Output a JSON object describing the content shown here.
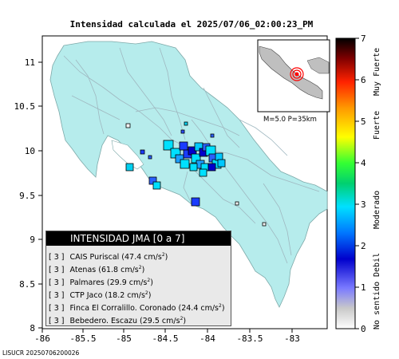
{
  "title": "Intensidad calculada el 2025/07/06_02:00:23_PM",
  "footer": "LISUCR 20250706200026",
  "inset": {
    "label": "M=5.0 P=35km"
  },
  "axes": {
    "x_ticks": [
      "-86",
      "-85.5",
      "-85",
      "-84.5",
      "-84",
      "-83.5",
      "-83"
    ],
    "y_ticks": [
      "11",
      "10.5",
      "10",
      "9.5",
      "9",
      "8.5",
      "8"
    ]
  },
  "colorbar": {
    "ticks": [
      "0",
      "1",
      "2",
      "3",
      "4",
      "5",
      "6",
      "7"
    ],
    "categories": [
      "No sentido",
      "Debil",
      "Moderado",
      "Fuerte",
      "Muy Fuerte"
    ],
    "colors": [
      "#ffffff",
      "#c9c9c9",
      "#7a7aff",
      "#0000cc",
      "#0077ff",
      "#00e0ff",
      "#00d070",
      "#33ff33",
      "#ffff00",
      "#ff9900",
      "#ff2200",
      "#800000",
      "#000000"
    ]
  },
  "legend": {
    "header": "INTENSIDAD JMA [0 a 7]",
    "rows": [
      {
        "level": "[ 3 ]",
        "text": "CAIS Puriscal (47.4 cm/s",
        "sup": "2",
        "close": ")"
      },
      {
        "level": "[ 3 ]",
        "text": "Atenas (61.8 cm/s",
        "sup": "2",
        "close": ")"
      },
      {
        "level": "[ 3 ]",
        "text": "Palmares (29.9 cm/s",
        "sup": "2",
        "close": ")"
      },
      {
        "level": "[ 3 ]",
        "text": "CTP Jaco (18.2 cm/s",
        "sup": "2",
        "close": ")"
      },
      {
        "level": "[ 3 ]",
        "text": "Finca El Corralillo. Coronado (24.4 cm/s",
        "sup": "2",
        "close": ")"
      },
      {
        "level": "[ 3 ]",
        "text": "Bebedero. Escazu (29.5 cm/s",
        "sup": "2",
        "close": ")"
      }
    ]
  },
  "colors": {
    "land": "#b6ecec",
    "sea": "#ffffff",
    "roads": "#9fb8c0",
    "epicenter": "#ff0000"
  }
}
